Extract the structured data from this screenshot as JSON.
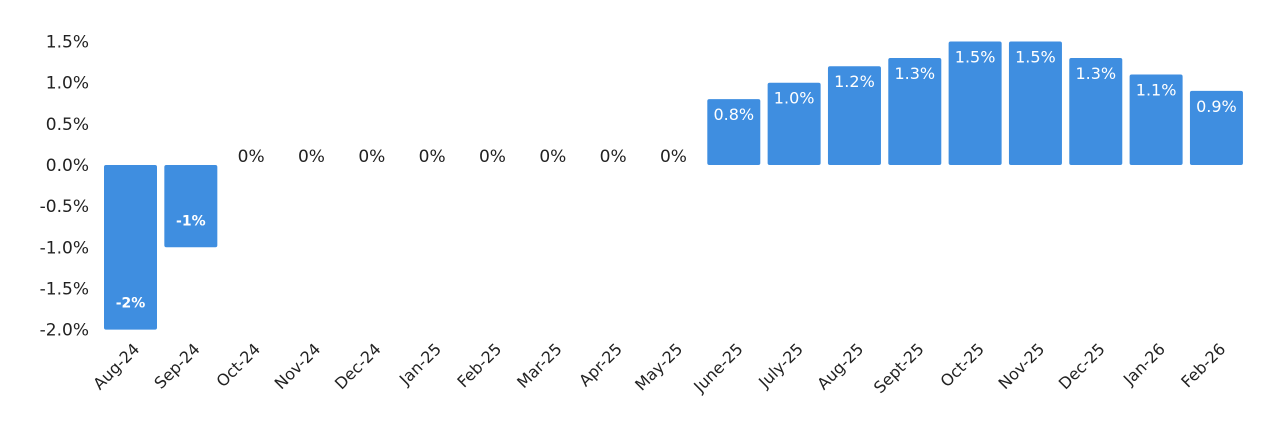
{
  "chart_data": {
    "type": "bar",
    "title": "",
    "xlabel": "",
    "ylabel": "",
    "categories": [
      "Aug-24",
      "Sep-24",
      "Oct-24",
      "Nov-24",
      "Dec-24",
      "Jan-25",
      "Feb-25",
      "Mar-25",
      "Apr-25",
      "May-25",
      "June-25",
      "July-25",
      "Aug-25",
      "Sept-25",
      "Oct-25",
      "Nov-25",
      "Dec-25",
      "Jan-26",
      "Feb-26"
    ],
    "values": [
      -2,
      -1,
      0,
      0,
      0,
      0,
      0,
      0,
      0,
      0,
      0.8,
      1.0,
      1.2,
      1.3,
      1.5,
      1.5,
      1.3,
      1.1,
      0.9
    ],
    "data_labels": [
      "-2%",
      "-1%",
      "0%",
      "0%",
      "0%",
      "0%",
      "0%",
      "0%",
      "0%",
      "0%",
      "0.8%",
      "1.0%",
      "1.2%",
      "1.3%",
      "1.5%",
      "1.5%",
      "1.3%",
      "1.1%",
      "0.9%"
    ],
    "yticks": [
      1.5,
      1.0,
      0.5,
      0.0,
      -0.5,
      -1.0,
      -1.5,
      -2.0
    ],
    "ytick_labels": [
      "1.5%",
      "1.0%",
      "0.5%",
      "0.0%",
      "-0.5%",
      "-1.0%",
      "-1.5%",
      "-2.0%"
    ],
    "ylim": [
      -2.0,
      1.5
    ],
    "grid": false,
    "legend": "none",
    "colors": {
      "bar": "#3f8ee0",
      "text": "#222222",
      "label_inside": "#ffffff"
    }
  }
}
